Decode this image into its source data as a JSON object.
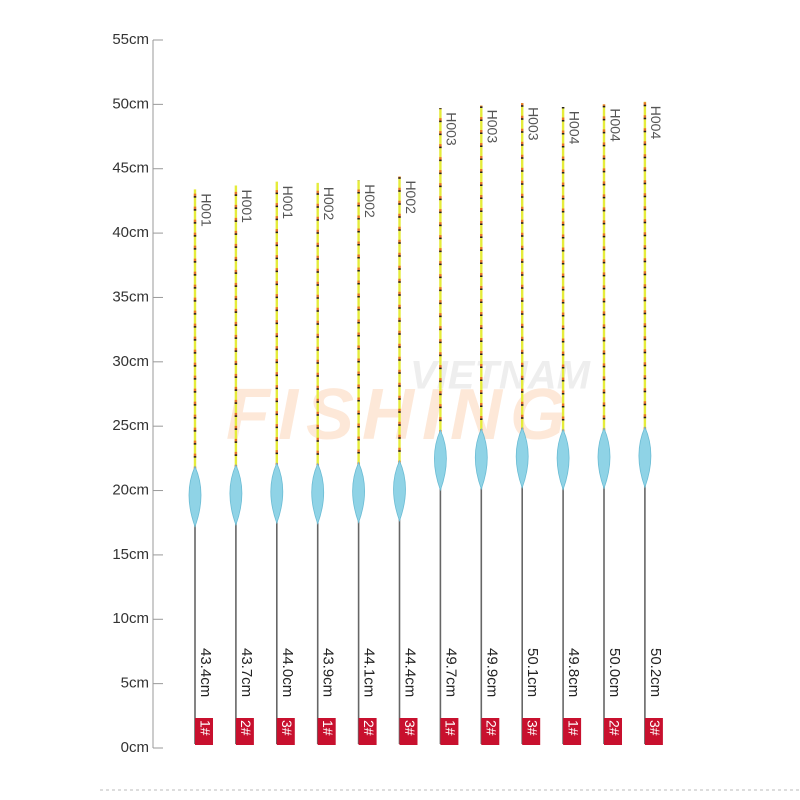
{
  "chart_data": {
    "type": "bar",
    "watermark": [
      "VIETNAM",
      "FISHING"
    ],
    "categories": [
      "H001",
      "H001",
      "H001",
      "H002",
      "H002",
      "H002",
      "H003",
      "H003",
      "H003",
      "H004",
      "H004",
      "H004"
    ],
    "values": [
      43.4,
      43.7,
      44.0,
      43.9,
      44.1,
      44.4,
      49.7,
      49.9,
      50.1,
      49.8,
      50.0,
      50.2
    ],
    "value_labels": [
      "43.4cm",
      "43.7cm",
      "44.0cm",
      "43.9cm",
      "44.1cm",
      "44.4cm",
      "49.7cm",
      "49.9cm",
      "50.1cm",
      "49.8cm",
      "50.0cm",
      "50.2cm"
    ],
    "sizes": [
      "1#",
      "2#",
      "3#",
      "1#",
      "2#",
      "3#",
      "1#",
      "2#",
      "3#",
      "1#",
      "2#",
      "3#"
    ],
    "color": "#8fd3e6",
    "size_color": "#c8102e",
    "ylim": [
      0,
      55
    ],
    "yticks": [
      {
        "value": 0,
        "label": "0cm"
      },
      {
        "value": 5,
        "label": "5cm"
      },
      {
        "value": 10,
        "label": "10cm"
      },
      {
        "value": 15,
        "label": "15cm"
      },
      {
        "value": 20,
        "label": "20cm"
      },
      {
        "value": 25,
        "label": "25cm"
      },
      {
        "value": 30,
        "label": "30cm"
      },
      {
        "value": 35,
        "label": "35cm"
      },
      {
        "value": 40,
        "label": "40cm"
      },
      {
        "value": 45,
        "label": "45cm"
      },
      {
        "value": 50,
        "label": "50cm"
      },
      {
        "value": 55,
        "label": "55cm"
      }
    ]
  }
}
